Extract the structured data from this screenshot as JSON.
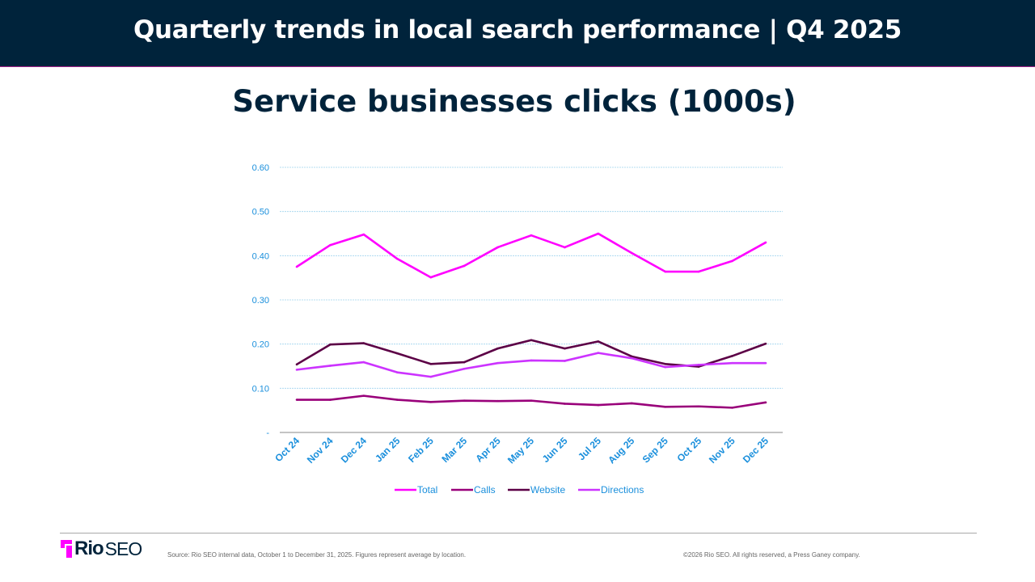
{
  "header": {
    "title": "Quarterly trends in local search performance  |  Q4 2025"
  },
  "chart_data": {
    "type": "line",
    "title": "Service businesses clicks (1000s)",
    "categories": [
      "Oct 24",
      "Nov 24",
      "Dec 24",
      "Jan 25",
      "Feb 25",
      "Mar 25",
      "Apr 25",
      "May 25",
      "Jun 25",
      "Jul 25",
      "Aug 25",
      "Sep 25",
      "Oct 25",
      "Nov 25",
      "Dec 25"
    ],
    "ylim": [
      0,
      0.6
    ],
    "yticks": [
      "-",
      "0.10",
      "0.20",
      "0.30",
      "0.40",
      "0.50",
      "0.60"
    ],
    "grid": true,
    "legend": "bottom",
    "series": [
      {
        "name": "Total",
        "color": "#ff00ff",
        "values": [
          0.375,
          0.424,
          0.448,
          0.393,
          0.351,
          0.377,
          0.419,
          0.446,
          0.419,
          0.45,
          0.406,
          0.364,
          0.364,
          0.388,
          0.43
        ]
      },
      {
        "name": "Calls",
        "color": "#99007a",
        "values": [
          0.074,
          0.074,
          0.083,
          0.074,
          0.069,
          0.072,
          0.071,
          0.072,
          0.065,
          0.062,
          0.066,
          0.058,
          0.059,
          0.056,
          0.068
        ]
      },
      {
        "name": "Website",
        "color": "#5c0046",
        "values": [
          0.154,
          0.199,
          0.202,
          0.179,
          0.155,
          0.159,
          0.19,
          0.209,
          0.19,
          0.206,
          0.172,
          0.155,
          0.149,
          0.173,
          0.201
        ]
      },
      {
        "name": "Directions",
        "color": "#cc33ff",
        "values": [
          0.142,
          0.151,
          0.159,
          0.136,
          0.126,
          0.144,
          0.157,
          0.163,
          0.162,
          0.18,
          0.168,
          0.148,
          0.153,
          0.157,
          0.157
        ]
      }
    ]
  },
  "footer": {
    "logo": "Rio SEO",
    "logo_rio": "Rio",
    "logo_seo": "SEO",
    "source": "Source: Rio SEO internal data, October 1 to December 31, 2025. Figures represent average by location.",
    "copyright": "©2026 Rio SEO.  All rights reserved, a Press Ganey company."
  }
}
